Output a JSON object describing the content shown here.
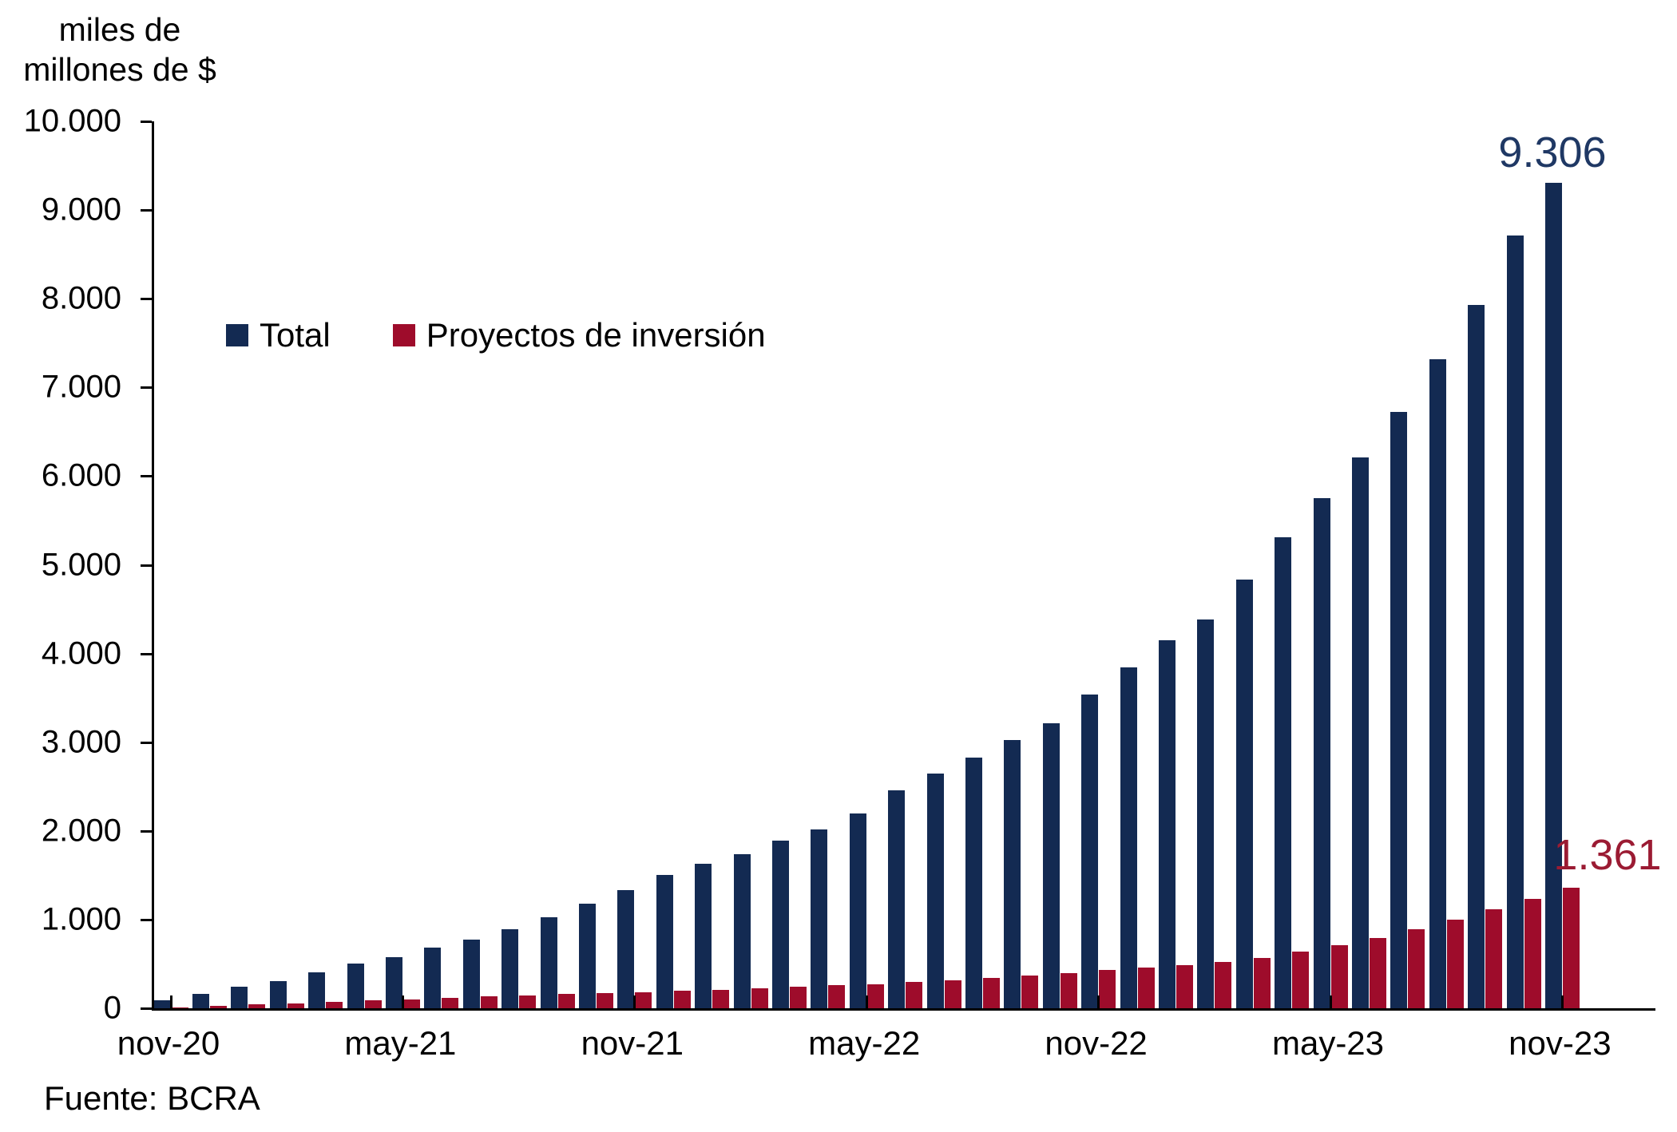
{
  "title": {
    "line1": "miles de",
    "line2": "millones de $"
  },
  "source": "Fuente: BCRA",
  "legend": {
    "items": [
      {
        "label": "Total",
        "color": "#132a52"
      },
      {
        "label": "Proyectos de inversión",
        "color": "#9e0c2b"
      }
    ]
  },
  "annotations": {
    "total_last": "9.306",
    "proyectos_last": "1.361"
  },
  "y_axis": {
    "tick_labels": [
      "0",
      "1.000",
      "2.000",
      "3.000",
      "4.000",
      "5.000",
      "6.000",
      "7.000",
      "8.000",
      "9.000",
      "10.000"
    ],
    "tick_values": [
      0,
      1000,
      2000,
      3000,
      4000,
      5000,
      6000,
      7000,
      8000,
      9000,
      10000
    ]
  },
  "x_axis": {
    "tick_labels": [
      "nov-20",
      "may-21",
      "nov-21",
      "may-22",
      "nov-22",
      "may-23",
      "nov-23"
    ],
    "tick_every": 6
  },
  "chart_data": {
    "type": "bar",
    "title": "miles de millones de $",
    "xlabel": "",
    "ylabel": "miles de millones de $",
    "ylim": [
      0,
      10000
    ],
    "grid": false,
    "legend_position": "upper-left-inside",
    "categories": [
      "nov-20",
      "dic-20",
      "ene-21",
      "feb-21",
      "mar-21",
      "abr-21",
      "may-21",
      "jun-21",
      "jul-21",
      "ago-21",
      "sep-21",
      "oct-21",
      "nov-21",
      "dic-21",
      "ene-22",
      "feb-22",
      "mar-22",
      "abr-22",
      "may-22",
      "jun-22",
      "jul-22",
      "ago-22",
      "sep-22",
      "oct-22",
      "nov-22",
      "dic-22",
      "ene-23",
      "feb-23",
      "mar-23",
      "abr-23",
      "may-23",
      "jun-23",
      "jul-23",
      "ago-23",
      "sep-23",
      "oct-23",
      "nov-23"
    ],
    "series": [
      {
        "name": "Total",
        "color": "#132a52",
        "values": [
          88,
          165,
          240,
          310,
          408,
          505,
          580,
          680,
          775,
          895,
          1030,
          1180,
          1335,
          1500,
          1625,
          1740,
          1890,
          2015,
          2200,
          2455,
          2650,
          2825,
          3020,
          3210,
          3540,
          3845,
          4150,
          4380,
          4830,
          5310,
          5750,
          6210,
          6720,
          7320,
          7930,
          8710,
          9306
        ]
      },
      {
        "name": "Proyectos de inversión",
        "color": "#9e0c2b",
        "values": [
          8,
          28,
          42,
          52,
          72,
          90,
          100,
          114,
          132,
          145,
          158,
          170,
          182,
          198,
          210,
          225,
          240,
          258,
          274,
          294,
          318,
          342,
          368,
          396,
          428,
          462,
          490,
          518,
          570,
          640,
          715,
          795,
          890,
          1000,
          1115,
          1235,
          1361
        ]
      }
    ]
  }
}
